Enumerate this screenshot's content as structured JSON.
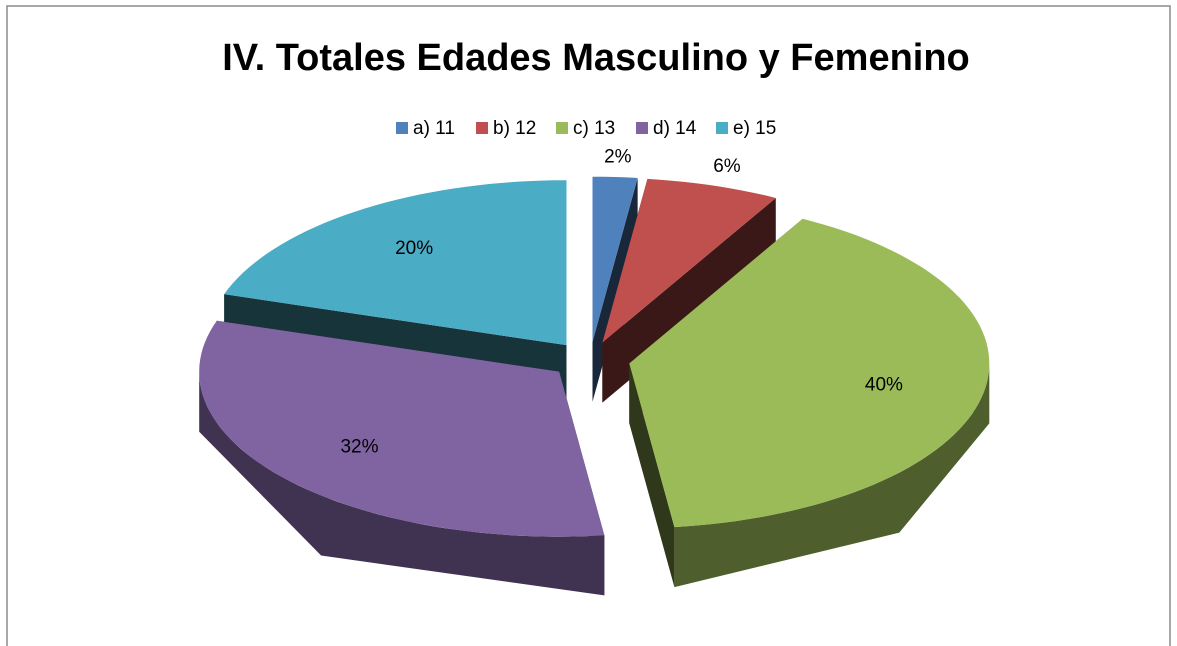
{
  "chart_data": {
    "type": "pie3d",
    "title": "IV. Totales Edades Masculino y Femenino",
    "categories": [
      "a) 11",
      "b) 12",
      "c) 13",
      "d) 14",
      "e) 15"
    ],
    "values": [
      2,
      6,
      40,
      32,
      20
    ],
    "value_labels": [
      "2%",
      "6%",
      "40%",
      "32%",
      "20%"
    ],
    "colors": [
      "#4f81bd",
      "#c0504d",
      "#9bbb59",
      "#8064a2",
      "#4bacc6"
    ],
    "legend": "top"
  }
}
